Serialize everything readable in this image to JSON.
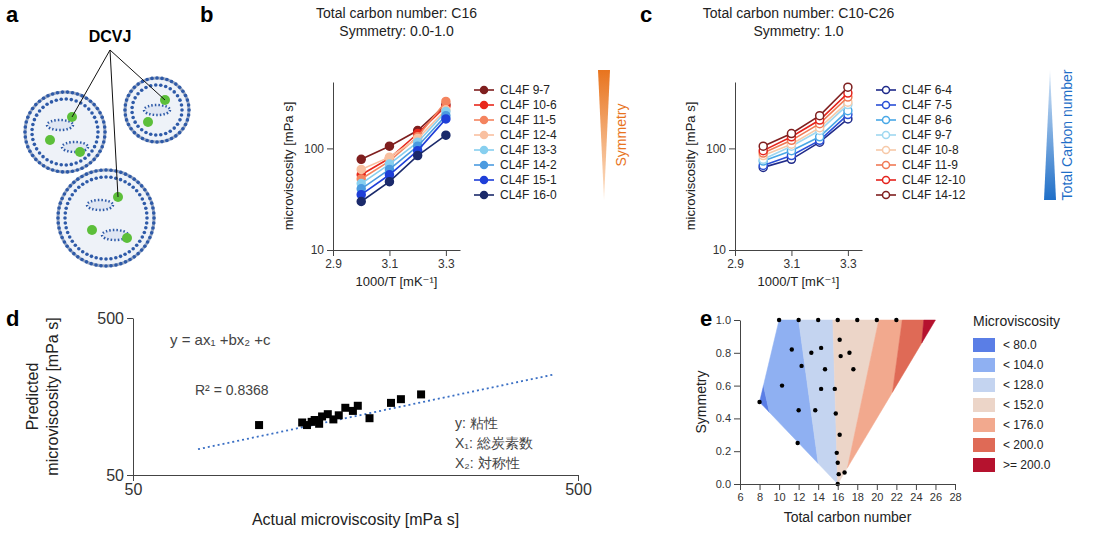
{
  "chart_data": [
    {
      "type": "diagram",
      "panel_label": "a",
      "label": "DCVJ"
    },
    {
      "type": "line",
      "panel_label": "b",
      "title": "Total carbon number: C16",
      "subtitle": "Symmetry: 0.0-1.0",
      "xlabel": "1000/T [mK⁻¹]",
      "ylabel": "microviscosity [mPa s]",
      "annotation": "Symmetry",
      "x": [
        3.0,
        3.1,
        3.2,
        3.3
      ],
      "xlim": [
        2.9,
        3.35
      ],
      "xticks": [
        2.9,
        3.1,
        3.3
      ],
      "ylim": [
        10,
        450
      ],
      "yticks": [
        10,
        100
      ],
      "log": "y",
      "grid": false,
      "legend": "right",
      "marker": "circle",
      "series": [
        {
          "name": "CL4F 9-7",
          "color": "#7f1f1f",
          "values": [
            78,
            105,
            150,
            270
          ]
        },
        {
          "name": "CL4F 10-6",
          "color": "#e8291c",
          "values": [
            55,
            80,
            140,
            260
          ]
        },
        {
          "name": "CL4F 11-5",
          "color": "#f4845f",
          "values": [
            50,
            75,
            130,
            290
          ]
        },
        {
          "name": "CL4F 12-4",
          "color": "#f9c0a0",
          "values": [
            62,
            82,
            125,
            240
          ]
        },
        {
          "name": "CL4F 13-3",
          "color": "#87cfef",
          "values": [
            45,
            70,
            115,
            230
          ]
        },
        {
          "name": "CL4F 14-2",
          "color": "#4b9be0",
          "values": [
            40,
            62,
            105,
            210
          ]
        },
        {
          "name": "CL4F 15-1",
          "color": "#1f3fd8",
          "values": [
            35,
            55,
            95,
            195
          ]
        },
        {
          "name": "CL4F 16-0",
          "color": "#1b2a6b",
          "values": [
            30,
            47,
            85,
            135
          ]
        }
      ]
    },
    {
      "type": "line",
      "panel_label": "c",
      "title": "Total carbon number: C10-C26",
      "subtitle": "Symmetry: 1.0",
      "xlabel": "1000/T [mK⁻¹]",
      "ylabel": "microviscosity [mPa s]",
      "annotation": "Total Carbon number",
      "x": [
        3.0,
        3.1,
        3.2,
        3.3
      ],
      "xlim": [
        2.9,
        3.35
      ],
      "xticks": [
        2.9,
        3.1,
        3.3
      ],
      "ylim": [
        10,
        450
      ],
      "yticks": [
        10,
        100
      ],
      "log": "y",
      "grid": false,
      "legend": "right",
      "marker": "circle_open",
      "series": [
        {
          "name": "CL4F 6-4",
          "color": "#1f2a8a",
          "values": [
            65,
            78,
            115,
            195
          ]
        },
        {
          "name": "CL4F 7-5",
          "color": "#2a4fd6",
          "values": [
            68,
            85,
            120,
            215
          ]
        },
        {
          "name": "CL4F 8-6",
          "color": "#49a8e6",
          "values": [
            75,
            95,
            130,
            235
          ]
        },
        {
          "name": "CL4F 9-7",
          "color": "#9fd8f0",
          "values": [
            78,
            105,
            150,
            270
          ]
        },
        {
          "name": "CL4F 10-8",
          "color": "#f7c9a8",
          "values": [
            85,
            110,
            160,
            285
          ]
        },
        {
          "name": "CL4F 11-9",
          "color": "#f07a55",
          "values": [
            90,
            120,
            175,
            320
          ]
        },
        {
          "name": "CL4F 12-10",
          "color": "#e5241d",
          "values": [
            95,
            130,
            190,
            350
          ]
        },
        {
          "name": "CL4F 14-12",
          "color": "#7f1f1f",
          "values": [
            105,
            140,
            210,
            400
          ]
        }
      ]
    },
    {
      "type": "scatter",
      "panel_label": "d",
      "xlabel": "Actual microviscosity [mPa s]",
      "ylabel": "Predicted microviscosity [mPa s]",
      "annotations": [
        "y = ax₁ +bx₂ +c",
        "R² = 0.8368",
        "y: 粘性",
        "X₁: 総炭素数",
        "X₂: 対称性"
      ],
      "x": [
        96,
        120,
        123,
        126,
        128,
        131,
        133,
        137,
        141,
        145,
        150,
        156,
        160,
        170,
        190,
        200,
        222
      ],
      "values": [
        104,
        108,
        104,
        109,
        112,
        106,
        118,
        122,
        113,
        120,
        134,
        128,
        138,
        115,
        144,
        152,
        163
      ],
      "color": "#000000",
      "marker": "square",
      "xlim": [
        50,
        500
      ],
      "ylim": [
        50,
        500
      ],
      "xticks": [
        50,
        500
      ],
      "yticks": [
        50,
        500
      ],
      "log": true,
      "grid": false,
      "fit_line": {
        "x": [
          70,
          440
        ],
        "values": [
          73,
          218
        ],
        "color": "#3a6fc4",
        "line_style": "dotted"
      }
    },
    {
      "type": "region",
      "panel_label": "e",
      "xlabel": "Total carbon number",
      "ylabel": "Symmetry",
      "legend_title": "Microviscosity",
      "legend": "right",
      "xlim": [
        6,
        28
      ],
      "xticks": [
        6,
        8,
        10,
        12,
        14,
        16,
        18,
        20,
        22,
        24,
        26,
        28
      ],
      "ylim": [
        0,
        1
      ],
      "yticks": [
        {
          "value": 0,
          "label": "0.0"
        },
        0.2,
        0.4,
        0.6,
        0.8,
        {
          "value": 1,
          "label": "1.0"
        }
      ],
      "grid": false,
      "regions": [
        {
          "label": "< 80.0",
          "color": "#5a7ee6",
          "polygon": [
            [
              8,
              0.5
            ],
            [
              9,
              0.4375
            ],
            [
              8.4,
              0.6
            ]
          ]
        },
        {
          "label": "< 104.0",
          "color": "#8fb0f2",
          "polygon": [
            [
              8.4,
              0.6
            ],
            [
              9,
              0.4375
            ],
            [
              14,
              0.125
            ],
            [
              12,
              1.0
            ],
            [
              10,
              1.0
            ]
          ]
        },
        {
          "label": "< 128.0",
          "color": "#c4d4f0",
          "polygon": [
            [
              12,
              1.0
            ],
            [
              14,
              0.125
            ],
            [
              16,
              0
            ],
            [
              15.5,
              1.0
            ]
          ]
        },
        {
          "label": "< 152.0",
          "color": "#ecd5c8",
          "polygon": [
            [
              15.5,
              1.0
            ],
            [
              16,
              0
            ],
            [
              17,
              0.1
            ],
            [
              20.2,
              1.0
            ]
          ]
        },
        {
          "label": "< 176.0",
          "color": "#f2a98e",
          "polygon": [
            [
              20.2,
              1.0
            ],
            [
              17,
              0.1
            ],
            [
              21.6,
              0.56
            ],
            [
              22.6,
              1.0
            ]
          ]
        },
        {
          "label": "< 200.0",
          "color": "#df6a56",
          "polygon": [
            [
              22.6,
              1.0
            ],
            [
              21.6,
              0.56
            ],
            [
              24.6,
              0.86
            ],
            [
              24.8,
              1.0
            ]
          ]
        },
        {
          "label": ">= 200.0",
          "color": "#b5122e",
          "polygon": [
            [
              24.8,
              1.0
            ],
            [
              24.6,
              0.86
            ],
            [
              26,
              1.0
            ]
          ]
        }
      ],
      "x": [
        8,
        10,
        12,
        14,
        16,
        18,
        20,
        22,
        11.3,
        12.3,
        10.3,
        13.3,
        12,
        11.9,
        14.3,
        14.7,
        14.3,
        13.7,
        16.2,
        16.3,
        17.2,
        17.6,
        15.7,
        15.8,
        16.2,
        15.9,
        16,
        16.1,
        16,
        16.7
      ],
      "values": [
        0.5,
        1,
        1,
        1,
        1,
        1,
        1,
        1,
        0.82,
        0.72,
        0.6,
        0.8,
        0.45,
        0.25,
        0.83,
        0.7,
        0.58,
        0.45,
        0.88,
        0.78,
        0.8,
        0.7,
        0.58,
        0.43,
        0.3,
        0.19,
        0.13,
        0.06,
        0,
        0.07
      ],
      "color": "#000000",
      "marker": "circle"
    }
  ]
}
